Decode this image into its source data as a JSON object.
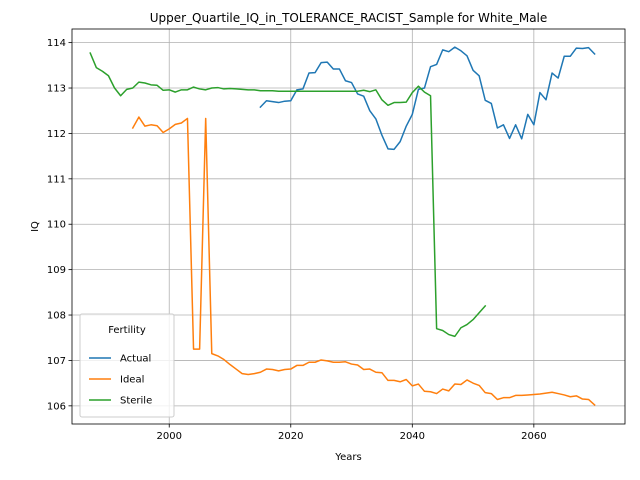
{
  "chart_data": {
    "type": "line",
    "title": "Upper_Quartile_IQ_in_TOLERANCE_RACIST_Sample for White_Male",
    "xlabel": "Years",
    "ylabel": "IQ",
    "xlim": [
      1984,
      2075
    ],
    "ylim": [
      105.6,
      114.3
    ],
    "xticks": [
      2000,
      2020,
      2040,
      2060
    ],
    "yticks": [
      106,
      107,
      108,
      109,
      110,
      111,
      112,
      113,
      114
    ],
    "grid": true,
    "legend": {
      "title": "Fertility",
      "placement": "lower-left"
    },
    "series": [
      {
        "name": "Actual",
        "color": "#1f77b4",
        "x": [
          2015,
          2016,
          2017,
          2018,
          2019,
          2020,
          2021,
          2022,
          2023,
          2024,
          2025,
          2026,
          2027,
          2028,
          2029,
          2030,
          2031,
          2032,
          2033,
          2034,
          2035,
          2036,
          2037,
          2038,
          2039,
          2040,
          2041,
          2042,
          2043,
          2044,
          2045,
          2046,
          2047,
          2048,
          2049,
          2050,
          2051,
          2052,
          2053,
          2054,
          2055,
          2056,
          2057,
          2058,
          2059,
          2060,
          2061,
          2062,
          2063,
          2064,
          2065,
          2066,
          2067,
          2068,
          2069,
          2070
        ],
        "y": [
          112.58,
          112.72,
          112.7,
          112.68,
          112.71,
          112.72,
          112.96,
          112.98,
          113.33,
          113.34,
          113.56,
          113.57,
          113.42,
          113.42,
          113.16,
          113.12,
          112.87,
          112.82,
          112.5,
          112.32,
          111.96,
          111.66,
          111.65,
          111.82,
          112.16,
          112.42,
          112.97,
          113.0,
          113.47,
          113.52,
          113.84,
          113.8,
          113.9,
          113.82,
          113.71,
          113.39,
          113.27,
          112.73,
          112.66,
          112.12,
          112.19,
          111.89,
          112.19,
          111.88,
          112.42,
          112.19,
          112.9,
          112.74,
          113.33,
          113.22,
          113.7,
          113.7,
          113.88,
          113.87,
          113.89,
          113.75
        ]
      },
      {
        "name": "Ideal",
        "color": "#ff7f0e",
        "x": [
          1994,
          1995,
          1996,
          1997,
          1998,
          1999,
          2000,
          2001,
          2002,
          2003,
          2004,
          2005,
          2006,
          2007,
          2008,
          2009,
          2010,
          2011,
          2012,
          2013,
          2014,
          2015,
          2016,
          2017,
          2018,
          2019,
          2020,
          2021,
          2022,
          2023,
          2024,
          2025,
          2026,
          2027,
          2028,
          2029,
          2030,
          2031,
          2032,
          2033,
          2034,
          2035,
          2036,
          2037,
          2038,
          2039,
          2040,
          2041,
          2042,
          2043,
          2044,
          2045,
          2046,
          2047,
          2048,
          2049,
          2050,
          2051,
          2052,
          2053,
          2054,
          2055,
          2056,
          2057,
          2058,
          2059,
          2060,
          2061,
          2062,
          2063,
          2064,
          2065,
          2066,
          2067,
          2068,
          2069,
          2070
        ],
        "y": [
          112.12,
          112.36,
          112.16,
          112.19,
          112.17,
          112.02,
          112.1,
          112.2,
          112.23,
          112.33,
          107.25,
          107.25,
          112.33,
          107.15,
          107.1,
          107.02,
          106.91,
          106.81,
          106.71,
          106.69,
          106.71,
          106.74,
          106.81,
          106.8,
          106.77,
          106.8,
          106.81,
          106.89,
          106.89,
          106.96,
          106.96,
          107.01,
          106.99,
          106.96,
          106.96,
          106.97,
          106.92,
          106.9,
          106.8,
          106.81,
          106.74,
          106.73,
          106.56,
          106.56,
          106.53,
          106.58,
          106.44,
          106.48,
          106.32,
          106.31,
          106.27,
          106.37,
          106.33,
          106.48,
          106.47,
          106.57,
          106.5,
          106.45,
          106.29,
          106.27,
          106.14,
          106.18,
          106.18,
          106.23,
          106.23,
          106.24,
          106.25,
          106.26,
          106.28,
          106.3,
          106.27,
          106.24,
          106.2,
          106.22,
          106.15,
          106.14,
          106.02
        ]
      },
      {
        "name": "Sterile",
        "color": "#2ca02c",
        "x": [
          1987,
          1988,
          1989,
          1990,
          1991,
          1992,
          1993,
          1994,
          1995,
          1996,
          1997,
          1998,
          1999,
          2000,
          2001,
          2002,
          2003,
          2004,
          2005,
          2006,
          2007,
          2008,
          2009,
          2010,
          2011,
          2012,
          2013,
          2014,
          2015,
          2016,
          2017,
          2018,
          2019,
          2020,
          2021,
          2022,
          2023,
          2024,
          2025,
          2026,
          2027,
          2028,
          2029,
          2030,
          2031,
          2032,
          2033,
          2034,
          2035,
          2036,
          2037,
          2038,
          2039,
          2040,
          2041,
          2042,
          2043,
          2044,
          2045,
          2046,
          2047,
          2048,
          2049,
          2050,
          2051,
          2052
        ],
        "y": [
          113.77,
          113.45,
          113.37,
          113.27,
          113.0,
          112.83,
          112.97,
          113.0,
          113.13,
          113.11,
          113.07,
          113.06,
          112.95,
          112.96,
          112.91,
          112.96,
          112.96,
          113.02,
          112.98,
          112.96,
          113.0,
          113.01,
          112.98,
          112.99,
          112.98,
          112.97,
          112.96,
          112.96,
          112.94,
          112.94,
          112.94,
          112.93,
          112.93,
          112.93,
          112.93,
          112.93,
          112.93,
          112.93,
          112.93,
          112.93,
          112.93,
          112.93,
          112.93,
          112.93,
          112.93,
          112.95,
          112.92,
          112.96,
          112.74,
          112.62,
          112.68,
          112.68,
          112.69,
          112.9,
          113.04,
          112.91,
          112.83,
          107.7,
          107.66,
          107.57,
          107.53,
          107.72,
          107.79,
          107.9,
          108.05,
          108.2
        ]
      }
    ]
  }
}
